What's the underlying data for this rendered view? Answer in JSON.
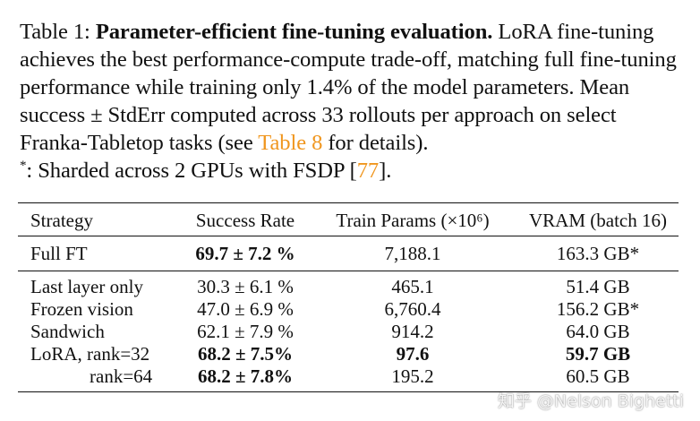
{
  "caption": {
    "label": "Table 1:",
    "title": "Parameter-efficient fine-tuning evaluation.",
    "text_1": "LoRA fine-tuning achieves the best performance-compute trade-off, matching full fine-tuning performance while training only 1.4% of the model parameters. Mean success ± StdErr computed across 33 rollouts per approach on select Franka-Tabletop tasks (see",
    "table_ref": "Table 8",
    "text_2": "for details).",
    "footnote_mark": "*",
    "footnote_text": ": Sharded across 2 GPUs with FSDP [",
    "citation": "77",
    "footnote_end": "]."
  },
  "table": {
    "headers": {
      "strategy": "Strategy",
      "success": "Success Rate",
      "params": "Train Params (×10⁶)",
      "vram": "VRAM (batch 16)"
    },
    "full_ft": {
      "strategy": "Full FT",
      "success": "69.7 ± 7.2 %",
      "params": "7,188.1",
      "vram": "163.3 GB*"
    },
    "rows": [
      {
        "strategy": "Last layer only",
        "success": "30.3 ± 6.1 %",
        "params": "465.1",
        "vram": "51.4 GB"
      },
      {
        "strategy": "Frozen vision",
        "success": "47.0 ± 6.9 %",
        "params": "6,760.4",
        "vram": "156.2 GB*"
      },
      {
        "strategy": "Sandwich",
        "success": "62.1 ± 7.9 %",
        "params": "914.2",
        "vram": "64.0 GB"
      },
      {
        "strategy": "LoRA, rank=32",
        "success": "68.2 ± 7.5%",
        "params": "97.6",
        "vram": "59.7 GB"
      },
      {
        "strategy": "rank=64",
        "success": "68.2 ± 7.8%",
        "params": "195.2",
        "vram": "60.5 GB"
      }
    ]
  },
  "watermark": "知乎 @Nelson Bighetti"
}
